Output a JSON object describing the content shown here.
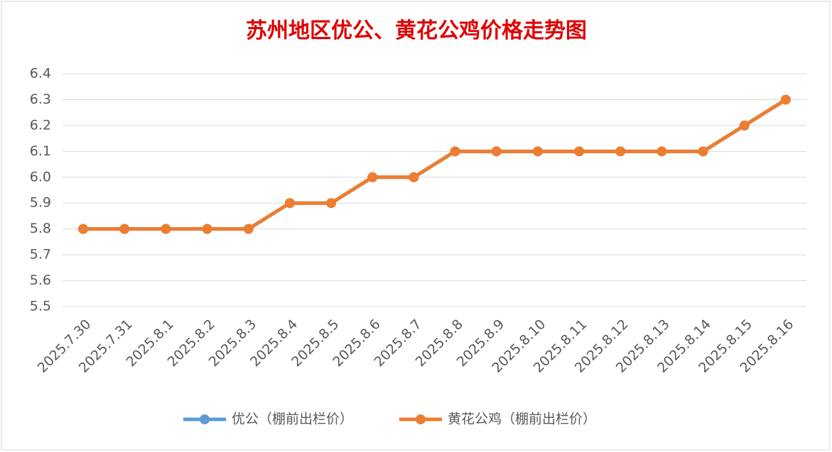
{
  "chart_data": {
    "type": "line",
    "title": "苏州地区优公、黄花公鸡价格走势图",
    "categories": [
      "2025.7.30",
      "2025.7.31",
      "2025.8.1",
      "2025.8.2",
      "2025.8.3",
      "2025.8.4",
      "2025.8.5",
      "2025.8.6",
      "2025.8.7",
      "2025.8.8",
      "2025.8.9",
      "2025.8.10",
      "2025.8.11",
      "2025.8.12",
      "2025.8.13",
      "2025.8.14",
      "2025.8.15",
      "2025.8.16"
    ],
    "series": [
      {
        "name": "优公（棚前出栏价）",
        "color": "#5b9bd5",
        "values": [
          5.8,
          5.8,
          5.8,
          5.8,
          5.8,
          5.9,
          5.9,
          6.0,
          6.0,
          6.1,
          6.1,
          6.1,
          6.1,
          6.1,
          6.1,
          6.1,
          6.2,
          6.3
        ]
      },
      {
        "name": "黄花公鸡（棚前出栏价）",
        "color": "#ed7d31",
        "values": [
          5.8,
          5.8,
          5.8,
          5.8,
          5.8,
          5.9,
          5.9,
          6.0,
          6.0,
          6.1,
          6.1,
          6.1,
          6.1,
          6.1,
          6.1,
          6.1,
          6.2,
          6.3
        ]
      }
    ],
    "ylim": [
      5.5,
      6.4
    ],
    "yticks": [
      5.5,
      5.6,
      5.7,
      5.8,
      5.9,
      {
        "value": 6,
        "label": "6.0"
      },
      6.1,
      6.2,
      6.3,
      6.4
    ],
    "grid": true,
    "legend": "bottom"
  }
}
